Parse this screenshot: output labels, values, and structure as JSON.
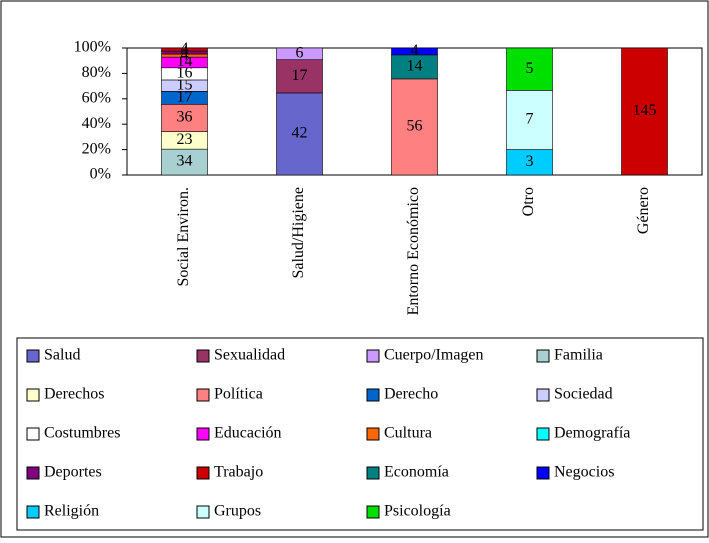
{
  "chart_data": {
    "type": "bar",
    "stacking": "percent",
    "categories": [
      "Social Environ.",
      "Salud/Higiene",
      "Entorno Económico",
      "Otro",
      "Género"
    ],
    "ylim": [
      0,
      100
    ],
    "yticks": [
      {
        "value": 0,
        "label": "0%"
      },
      {
        "value": 20,
        "label": "20%"
      },
      {
        "value": 40,
        "label": "40%"
      },
      {
        "value": 60,
        "label": "60%"
      },
      {
        "value": 80,
        "label": "80%"
      },
      {
        "value": 100,
        "label": "100%"
      }
    ],
    "grid": false,
    "legend": "bottom",
    "series": [
      {
        "name": "Salud",
        "color": "#6666cc",
        "values": [
          null,
          42,
          null,
          null,
          null
        ]
      },
      {
        "name": "Sexualidad",
        "color": "#993366",
        "values": [
          null,
          17,
          null,
          null,
          null
        ]
      },
      {
        "name": "Cuerpo/Imagen",
        "color": "#cc99ff",
        "values": [
          null,
          6,
          null,
          null,
          null
        ]
      },
      {
        "name": "Familia",
        "color": "#a8d0d0",
        "values": [
          34,
          null,
          null,
          null,
          null
        ]
      },
      {
        "name": "Derechos",
        "color": "#ffffcc",
        "values": [
          23,
          null,
          null,
          null,
          null
        ]
      },
      {
        "name": "Política",
        "color": "#ff8080",
        "values": [
          36,
          null,
          56,
          null,
          null
        ]
      },
      {
        "name": "Derecho",
        "color": "#0066cc",
        "values": [
          17,
          null,
          null,
          null,
          null
        ]
      },
      {
        "name": "Sociedad",
        "color": "#ccccff",
        "values": [
          15,
          null,
          null,
          null,
          null
        ]
      },
      {
        "name": "Costumbres",
        "color": "#ffffff",
        "values": [
          16,
          null,
          null,
          null,
          null
        ]
      },
      {
        "name": "Educación",
        "color": "#ff00ff",
        "values": [
          14,
          null,
          null,
          null,
          null
        ]
      },
      {
        "name": "Cultura",
        "color": "#ff6600",
        "values": [
          4,
          null,
          null,
          null,
          null
        ]
      },
      {
        "name": "Demografía",
        "color": "#00ffff",
        "values": [
          null,
          null,
          null,
          null,
          null
        ]
      },
      {
        "name": "Deportes",
        "color": "#800080",
        "values": [
          4,
          null,
          null,
          null,
          null
        ]
      },
      {
        "name": "Trabajo",
        "color": "#cc0000",
        "values": [
          4,
          null,
          null,
          null,
          145
        ]
      },
      {
        "name": "Economía",
        "color": "#008080",
        "values": [
          null,
          null,
          14,
          null,
          null
        ]
      },
      {
        "name": "Negocios",
        "color": "#0000ff",
        "values": [
          null,
          null,
          4,
          null,
          null
        ]
      },
      {
        "name": "Religión",
        "color": "#00ccff",
        "values": [
          null,
          null,
          null,
          3,
          null
        ]
      },
      {
        "name": "Grupos",
        "color": "#ccffff",
        "values": [
          null,
          null,
          null,
          7,
          null
        ]
      },
      {
        "name": "Psicología",
        "color": "#00e000",
        "values": [
          null,
          null,
          null,
          5,
          null
        ]
      }
    ]
  }
}
